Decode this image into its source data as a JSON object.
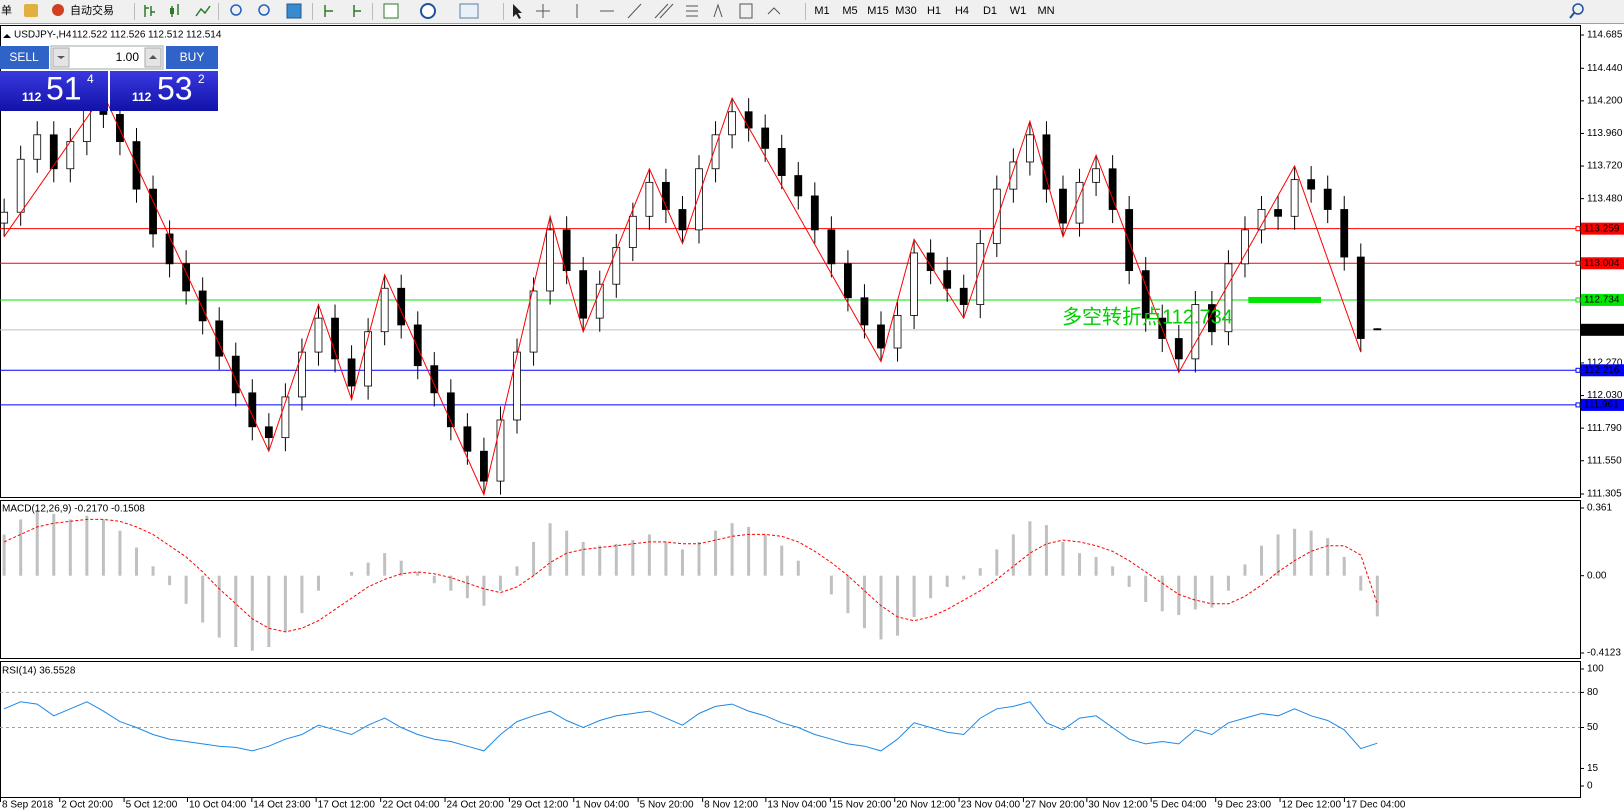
{
  "toolbar": {
    "menu_fragment": "单",
    "auto_trading": "自动交易",
    "timeframes": [
      "M1",
      "M5",
      "M15",
      "M30",
      "H1",
      "H4",
      "D1",
      "W1",
      "MN"
    ]
  },
  "trade_panel": {
    "sell": "SELL",
    "lot": "1.00",
    "buy": "BUY",
    "sell_price": {
      "big_figure": "112",
      "pips": "51",
      "fraction": "4"
    },
    "buy_price": {
      "big_figure": "112",
      "pips": "53",
      "fraction": "2"
    }
  },
  "chart_data": [
    {
      "type": "candlestick",
      "title": "USDJPY-,H4",
      "xlim": [
        -0.25,
        95.25
      ],
      "xticks": [
        {
          "value": -0.25,
          "label": "8 Sep 2018"
        },
        {
          "value": 3.33,
          "label": "2 Oct 20:00"
        },
        {
          "value": 7.22,
          "label": "5 Oct 12:00"
        },
        {
          "value": 11.05,
          "label": "10 Oct 04:00"
        },
        {
          "value": 14.94,
          "label": "14 Oct 23:00"
        },
        {
          "value": 18.83,
          "label": "17 Oct 12:00"
        },
        {
          "value": 22.73,
          "label": "22 Oct 04:00"
        },
        {
          "value": 26.62,
          "label": "24 Oct 20:00"
        },
        {
          "value": 30.51,
          "label": "29 Oct 12:00"
        },
        {
          "value": 34.4,
          "label": "1 Nov 04:00"
        },
        {
          "value": 38.29,
          "label": "5 Nov 20:00"
        },
        {
          "value": 42.19,
          "label": "8 Nov 12:00"
        },
        {
          "value": 46.01,
          "label": "13 Nov 04:00"
        },
        {
          "value": 49.91,
          "label": "15 Nov 20:00"
        },
        {
          "value": 53.8,
          "label": "20 Nov 12:00"
        },
        {
          "value": 57.69,
          "label": "23 Nov 04:00"
        },
        {
          "value": 61.58,
          "label": "27 Nov 20:00"
        },
        {
          "value": 65.41,
          "label": "30 Nov 12:00"
        },
        {
          "value": 69.3,
          "label": "5 Dec 04:00"
        },
        {
          "value": 73.2,
          "label": "9 Dec 23:00"
        },
        {
          "value": 77.09,
          "label": "12 Dec 12:00"
        },
        {
          "value": 80.98,
          "label": "17 Dec 04:00"
        }
      ],
      "ylim": [
        111.305,
        114.685
      ],
      "yticks": [
        111.305,
        {
          "value": 111.55,
          "label": "111.550"
        },
        {
          "value": 111.79,
          "label": "111.790"
        },
        {
          "value": 112.03,
          "label": "112.030"
        },
        {
          "value": 112.27,
          "label": "112.270"
        },
        {
          "value": 113.48,
          "label": "113.480"
        },
        {
          "value": 113.72,
          "label": "113.720"
        },
        {
          "value": 113.96,
          "label": "113.960"
        },
        {
          "value": 114.2,
          "label": "114.200"
        },
        {
          "value": 114.44,
          "label": "114.440"
        },
        114.685
      ],
      "candles": {
        "open": [
          113.3,
          113.38,
          113.77,
          113.95,
          113.7,
          113.9,
          114.15,
          114.1,
          113.9,
          113.55,
          113.22,
          113.0,
          112.8,
          112.58,
          112.32,
          112.05,
          111.8,
          111.72,
          112.02,
          112.35,
          112.6,
          112.3,
          112.1,
          112.5,
          112.82,
          112.55,
          112.25,
          112.05,
          111.8,
          111.62,
          111.4,
          111.85,
          112.35,
          112.8,
          113.25,
          112.95,
          112.6,
          112.85,
          113.12,
          113.35,
          113.6,
          113.4,
          113.25,
          113.7,
          113.95,
          114.12,
          114.0,
          113.85,
          113.65,
          113.5,
          113.25,
          113.0,
          112.75,
          112.55,
          112.38,
          112.62,
          113.08,
          112.95,
          112.82,
          112.7,
          113.15,
          113.55,
          113.75,
          113.95,
          113.55,
          113.3,
          113.6,
          113.7,
          113.4,
          112.95,
          112.6,
          112.45,
          112.3,
          112.7,
          112.5,
          113.0,
          113.25,
          113.4,
          113.35,
          113.62,
          113.55,
          113.4,
          113.05,
          112.522
        ],
        "high": [
          113.48,
          113.87,
          114.05,
          114.05,
          114.0,
          114.25,
          114.25,
          114.2,
          114.0,
          113.65,
          113.32,
          113.1,
          112.9,
          112.68,
          112.42,
          112.15,
          111.9,
          112.12,
          112.45,
          112.7,
          112.7,
          112.4,
          112.6,
          112.92,
          112.92,
          112.65,
          112.35,
          112.15,
          111.9,
          111.72,
          111.95,
          112.45,
          112.9,
          113.35,
          113.35,
          113.05,
          112.95,
          113.22,
          113.45,
          113.7,
          113.7,
          113.5,
          113.8,
          114.05,
          114.22,
          114.22,
          114.1,
          113.95,
          113.75,
          113.6,
          113.35,
          113.1,
          112.85,
          112.65,
          112.72,
          113.18,
          113.18,
          113.05,
          112.92,
          113.25,
          113.65,
          113.85,
          114.05,
          114.05,
          113.65,
          113.7,
          113.8,
          113.8,
          113.5,
          113.05,
          112.7,
          112.55,
          112.8,
          112.8,
          113.1,
          113.35,
          113.5,
          113.5,
          113.72,
          113.72,
          113.65,
          113.5,
          113.15,
          112.526
        ],
        "low": [
          113.2,
          113.28,
          113.67,
          113.6,
          113.6,
          113.8,
          114.0,
          113.8,
          113.45,
          113.12,
          112.9,
          112.7,
          112.48,
          112.22,
          111.95,
          111.7,
          111.62,
          111.62,
          111.92,
          112.25,
          112.2,
          112.0,
          112.0,
          112.4,
          112.45,
          112.15,
          111.95,
          111.7,
          111.52,
          111.3,
          111.3,
          111.75,
          112.25,
          112.7,
          112.85,
          112.5,
          112.5,
          112.75,
          113.02,
          113.25,
          113.3,
          113.15,
          113.15,
          113.6,
          113.85,
          113.9,
          113.75,
          113.55,
          113.4,
          113.15,
          112.9,
          112.65,
          112.45,
          112.28,
          112.28,
          112.52,
          112.85,
          112.72,
          112.6,
          112.6,
          113.05,
          113.45,
          113.65,
          113.45,
          113.2,
          113.2,
          113.5,
          113.3,
          112.85,
          112.5,
          112.35,
          112.2,
          112.2,
          112.4,
          112.4,
          112.9,
          113.15,
          113.25,
          113.25,
          113.45,
          113.3,
          112.95,
          112.35,
          112.512
        ],
        "close": [
          113.38,
          113.77,
          113.95,
          113.7,
          113.9,
          114.15,
          114.1,
          113.9,
          113.55,
          113.22,
          113.0,
          112.8,
          112.58,
          112.32,
          112.05,
          111.8,
          111.72,
          112.02,
          112.35,
          112.6,
          112.3,
          112.1,
          112.5,
          112.82,
          112.55,
          112.25,
          112.05,
          111.8,
          111.62,
          111.4,
          111.85,
          112.35,
          112.8,
          113.25,
          112.95,
          112.6,
          112.85,
          113.12,
          113.35,
          113.6,
          113.4,
          113.25,
          113.7,
          113.95,
          114.12,
          114.0,
          113.85,
          113.65,
          113.5,
          113.25,
          113.0,
          112.75,
          112.55,
          112.38,
          112.62,
          113.08,
          112.95,
          112.82,
          112.7,
          113.15,
          113.55,
          113.75,
          113.95,
          113.55,
          113.3,
          113.6,
          113.7,
          113.4,
          112.95,
          112.6,
          112.45,
          112.3,
          112.7,
          112.5,
          113.0,
          113.25,
          113.4,
          113.35,
          113.62,
          113.55,
          113.4,
          113.05,
          112.45,
          112.514
        ]
      },
      "zigzag": {
        "color": "#ff0000",
        "x": [
          0,
          6,
          16,
          19,
          21,
          23,
          29,
          33,
          35,
          39,
          41,
          44,
          53,
          55,
          58,
          62,
          64,
          66,
          71,
          78,
          82
        ],
        "values": [
          113.2,
          114.25,
          111.62,
          112.7,
          112.0,
          112.92,
          111.3,
          113.35,
          112.5,
          113.7,
          113.15,
          114.22,
          112.28,
          113.18,
          112.6,
          114.05,
          113.2,
          113.8,
          112.2,
          113.72,
          112.35
        ]
      },
      "levels": [
        {
          "value": 113.259,
          "color": "#ff0000"
        },
        {
          "value": 113.004,
          "color": "#ff0000"
        },
        {
          "value": 112.734,
          "color": "#00e600"
        },
        {
          "value": 112.216,
          "color": "#0000ff"
        },
        {
          "value": 111.961,
          "color": "#0000ff"
        }
      ],
      "annotation": "多空转折点112.734"
    },
    {
      "type": "macd",
      "title": "MACD(12,26,9) -0.2170 -0.1508",
      "ylim": [
        -0.4123,
        0.361
      ],
      "yticks": [
        -0.4123,
        {
          "value": 0,
          "label": "0.00"
        },
        0.361
      ],
      "histogram": {
        "color": "#c0c0c0",
        "values": [
          0.22,
          0.3,
          0.35,
          0.33,
          0.3,
          0.32,
          0.3,
          0.24,
          0.15,
          0.05,
          -0.05,
          -0.15,
          -0.25,
          -0.33,
          -0.38,
          -0.4,
          -0.38,
          -0.3,
          -0.2,
          -0.08,
          0.0,
          0.02,
          0.07,
          0.12,
          0.08,
          0.02,
          -0.04,
          -0.08,
          -0.12,
          -0.16,
          -0.08,
          0.05,
          0.18,
          0.28,
          0.24,
          0.18,
          0.16,
          0.17,
          0.19,
          0.22,
          0.18,
          0.14,
          0.18,
          0.24,
          0.28,
          0.26,
          0.22,
          0.16,
          0.08,
          0.0,
          -0.1,
          -0.2,
          -0.28,
          -0.34,
          -0.32,
          -0.22,
          -0.12,
          -0.06,
          -0.02,
          0.04,
          0.14,
          0.22,
          0.29,
          0.27,
          0.18,
          0.12,
          0.1,
          0.05,
          -0.06,
          -0.14,
          -0.19,
          -0.21,
          -0.18,
          -0.17,
          -0.08,
          0.06,
          0.16,
          0.22,
          0.25,
          0.24,
          0.2,
          0.1,
          -0.08,
          -0.217
        ]
      },
      "signal": {
        "color": "#ff0000",
        "values": [
          0.18,
          0.22,
          0.26,
          0.28,
          0.29,
          0.3,
          0.3,
          0.29,
          0.26,
          0.22,
          0.16,
          0.1,
          0.02,
          -0.07,
          -0.15,
          -0.23,
          -0.28,
          -0.3,
          -0.28,
          -0.24,
          -0.18,
          -0.12,
          -0.06,
          -0.02,
          0.01,
          0.02,
          0.01,
          -0.01,
          -0.04,
          -0.07,
          -0.09,
          -0.06,
          0.0,
          0.07,
          0.12,
          0.14,
          0.15,
          0.16,
          0.17,
          0.18,
          0.18,
          0.17,
          0.17,
          0.19,
          0.21,
          0.22,
          0.22,
          0.21,
          0.18,
          0.13,
          0.07,
          0.0,
          -0.08,
          -0.16,
          -0.22,
          -0.24,
          -0.22,
          -0.18,
          -0.13,
          -0.08,
          -0.02,
          0.05,
          0.12,
          0.17,
          0.19,
          0.18,
          0.16,
          0.13,
          0.08,
          0.02,
          -0.04,
          -0.1,
          -0.13,
          -0.15,
          -0.15,
          -0.11,
          -0.05,
          0.02,
          0.08,
          0.13,
          0.16,
          0.16,
          0.11,
          -0.1508
        ]
      }
    },
    {
      "type": "line",
      "title": "RSI(14) 36.5528",
      "color": "#1e88e5",
      "ylim": [
        0,
        100
      ],
      "yticks": [
        0,
        15,
        50,
        80,
        100
      ],
      "dashed_levels": [
        80,
        50
      ],
      "values": [
        66,
        72,
        70,
        60,
        66,
        72,
        64,
        55,
        50,
        44,
        40,
        38,
        36,
        34,
        33,
        30,
        34,
        40,
        44,
        52,
        48,
        44,
        52,
        58,
        50,
        44,
        40,
        38,
        34,
        30,
        44,
        55,
        60,
        64,
        56,
        50,
        56,
        60,
        62,
        64,
        58,
        52,
        62,
        68,
        70,
        64,
        60,
        54,
        50,
        44,
        40,
        36,
        34,
        30,
        40,
        54,
        50,
        46,
        44,
        58,
        66,
        68,
        72,
        54,
        48,
        58,
        60,
        50,
        40,
        36,
        38,
        36,
        48,
        44,
        54,
        58,
        62,
        60,
        66,
        60,
        56,
        48,
        32,
        36.5528
      ]
    }
  ]
}
